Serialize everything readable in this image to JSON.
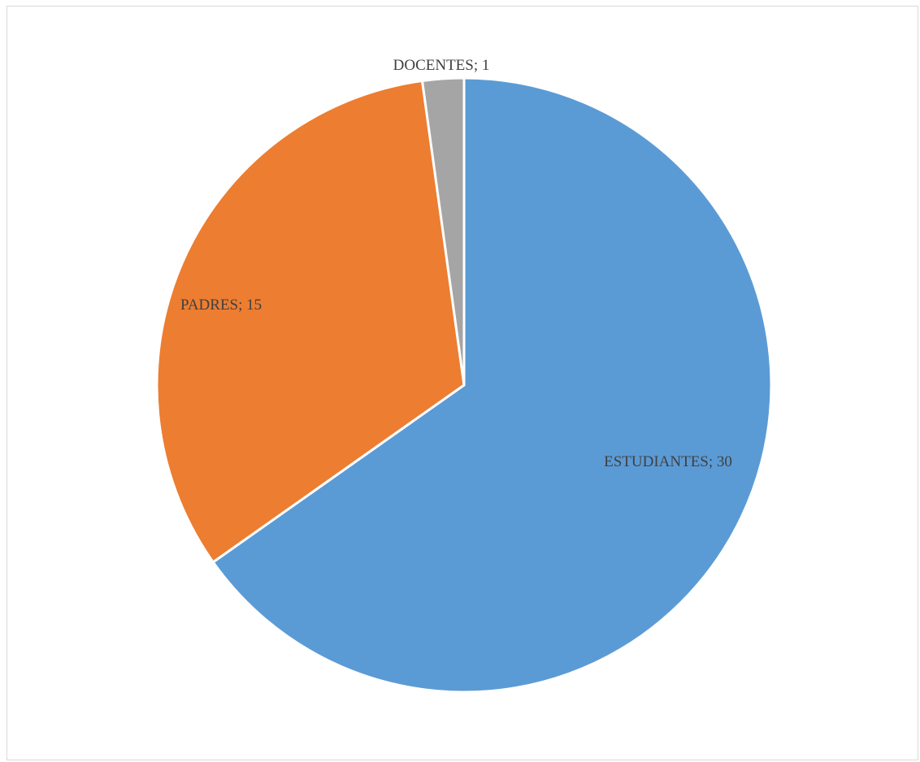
{
  "chart_data": {
    "type": "pie",
    "title": "",
    "categories": [
      "ESTUDIANTES",
      "PADRES",
      "DOCENTES"
    ],
    "values": [
      30,
      15,
      1
    ],
    "colors": [
      "#5B9BD5",
      "#ED7D31",
      "#A5A5A5"
    ],
    "labels": [
      "ESTUDIANTES; 30",
      "PADRES; 15",
      "DOCENTES; 1"
    ],
    "start_angle_deg": 0,
    "direction": "clockwise",
    "legend": "none"
  }
}
